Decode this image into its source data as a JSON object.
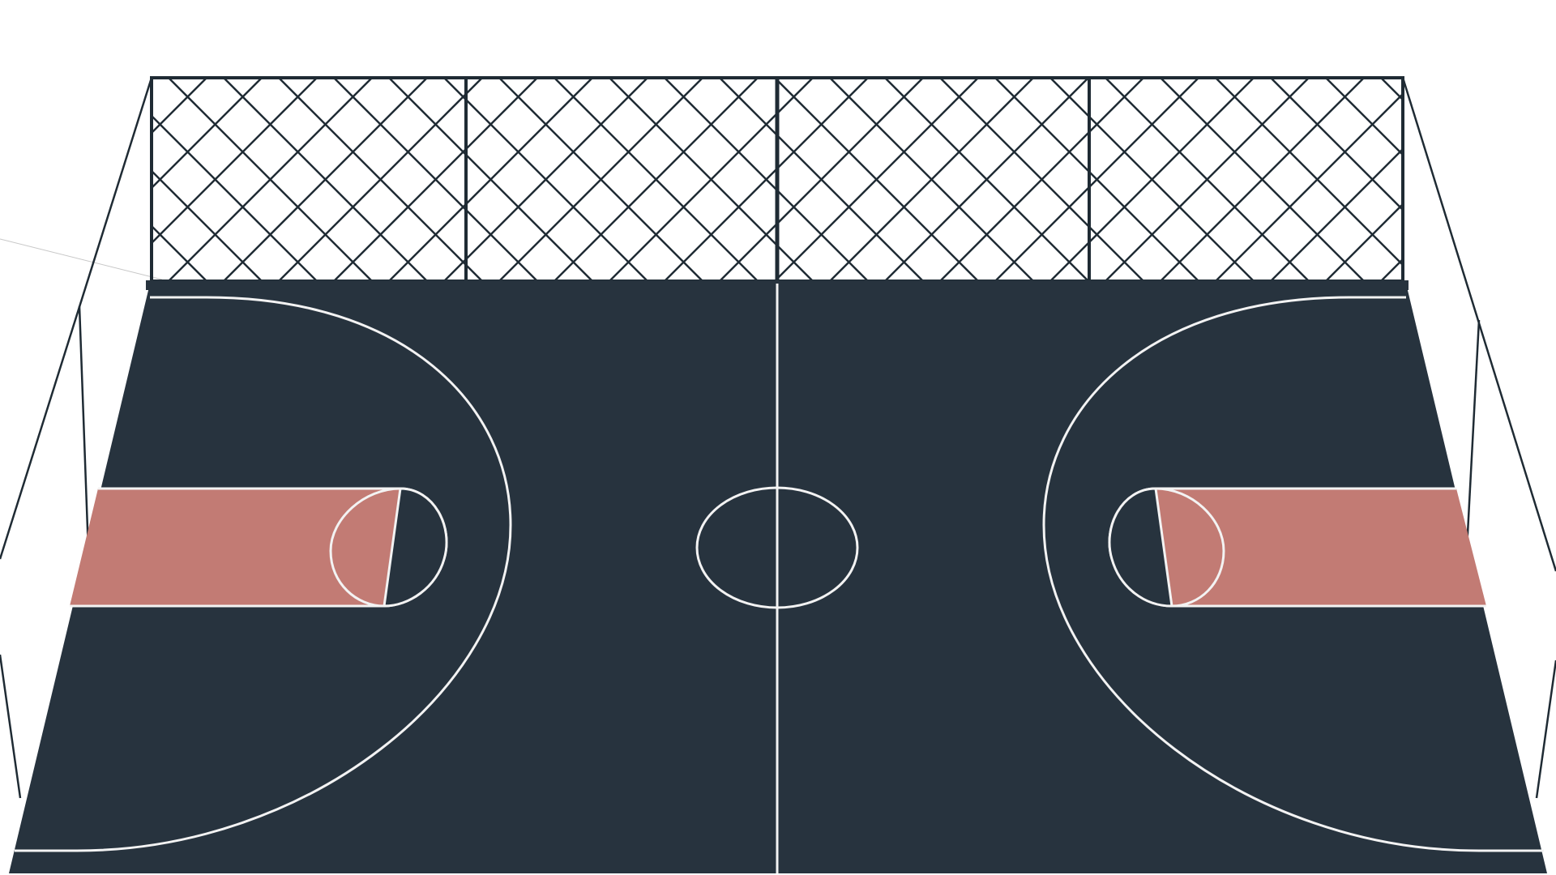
{
  "scene": {
    "subject": "basketball-court",
    "colors": {
      "background": "#ffffff",
      "court": "#27333e",
      "paint": "#c27b74",
      "lines": "#f3f3f3",
      "fence": "#1f2b34"
    }
  }
}
